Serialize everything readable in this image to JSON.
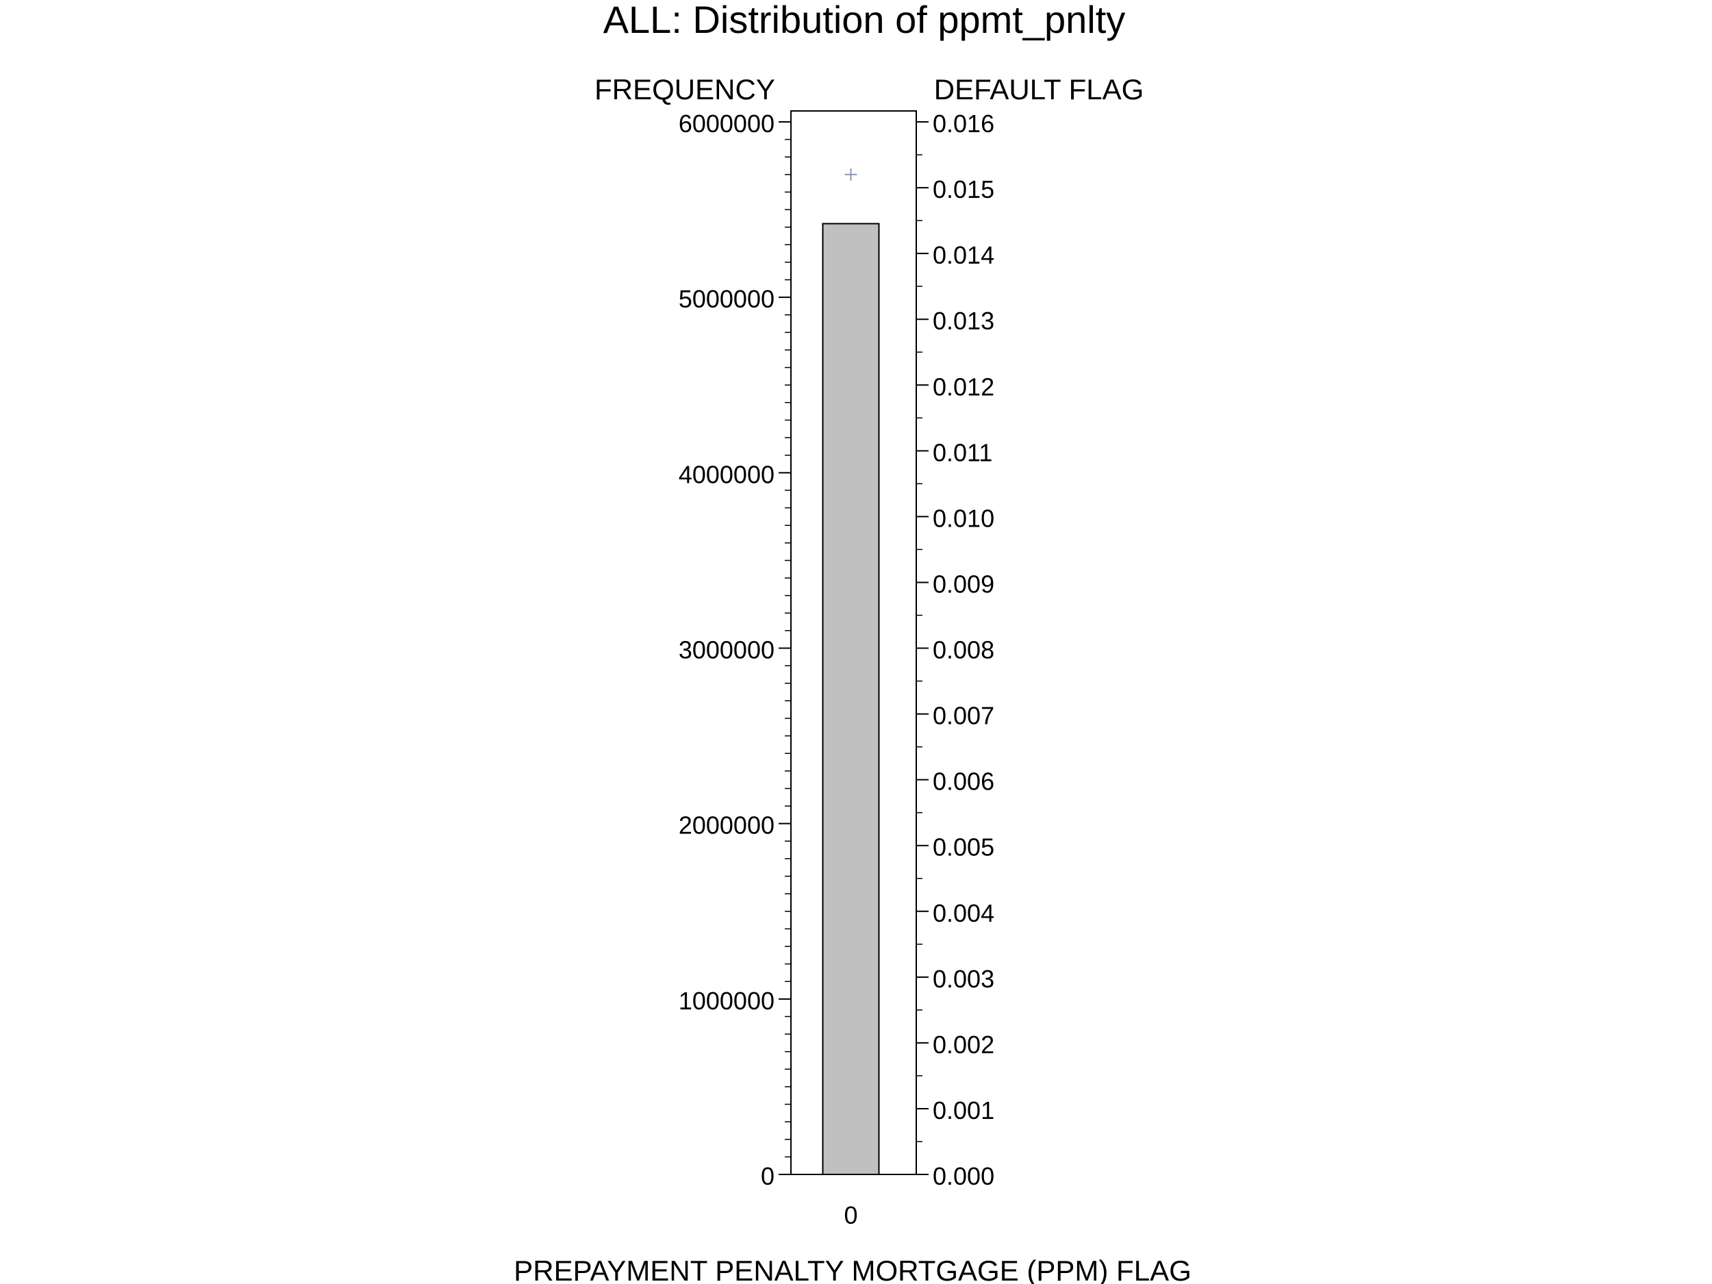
{
  "chart_data": {
    "type": "bar",
    "title": "ALL: Distribution of ppmt_pnlty",
    "xlabel": "PREPAYMENT PENALTY MORTGAGE (PPM) FLAG",
    "ylabel_left": "FREQUENCY",
    "ylabel_right": "DEFAULT FLAG",
    "categories": [
      "0"
    ],
    "series": [
      {
        "axis": "left",
        "mark": "bar",
        "values": [
          5420000
        ]
      },
      {
        "axis": "right",
        "mark": "plus",
        "values": [
          0.0152
        ]
      }
    ],
    "ylim_left": [
      0,
      6000000
    ],
    "ylim_right": [
      0,
      0.016
    ],
    "left_ticks": [
      "0",
      "1000000",
      "2000000",
      "3000000",
      "4000000",
      "5000000",
      "6000000"
    ],
    "right_ticks": [
      "0.000",
      "0.001",
      "0.002",
      "0.003",
      "0.004",
      "0.005",
      "0.006",
      "0.007",
      "0.008",
      "0.009",
      "0.010",
      "0.011",
      "0.012",
      "0.013",
      "0.014",
      "0.015",
      "0.016"
    ],
    "bar_color": "#c0c0c0",
    "marker_color": "#8a96c8",
    "grid": false
  }
}
